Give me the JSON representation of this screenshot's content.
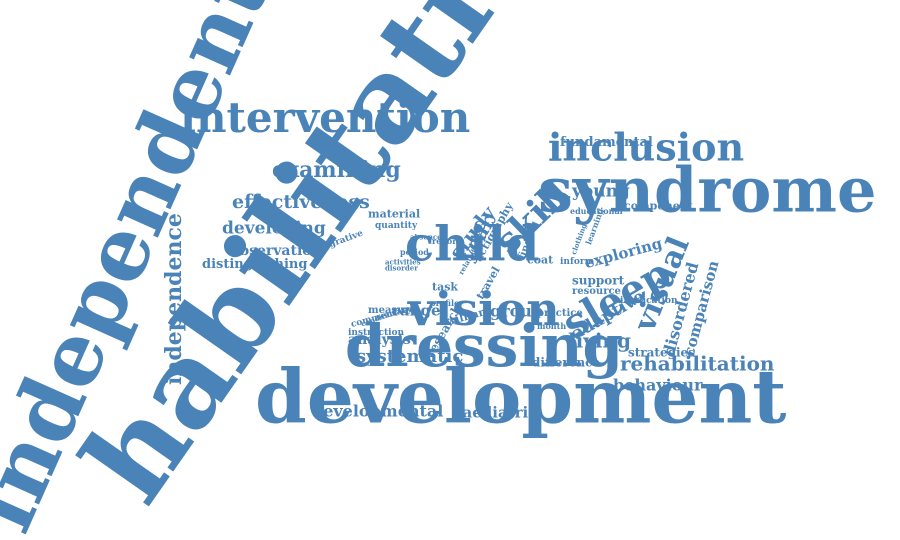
{
  "colors": {
    "word": "#4a83b8",
    "background": "#ffffff"
  },
  "words": [
    {
      "id": "independent",
      "text": "independent"
    },
    {
      "id": "habilitation",
      "text": "habilitation"
    },
    {
      "id": "development",
      "text": "development"
    },
    {
      "id": "dressing",
      "text": "dressing"
    },
    {
      "id": "syndrome",
      "text": "syndrome"
    },
    {
      "id": "child",
      "text": "child"
    },
    {
      "id": "vision",
      "text": "vision"
    },
    {
      "id": "intervention",
      "text": "intervention"
    },
    {
      "id": "inclusion",
      "text": "inclusion"
    },
    {
      "id": "sleep",
      "text": "sleep"
    },
    {
      "id": "visual",
      "text": "visual"
    },
    {
      "id": "skill",
      "text": "skill"
    },
    {
      "id": "independence",
      "text": "independence"
    },
    {
      "id": "examining",
      "text": "examining"
    },
    {
      "id": "effectiveness",
      "text": "effectiveness"
    },
    {
      "id": "developing",
      "text": "developing"
    },
    {
      "id": "observation",
      "text": "observation"
    },
    {
      "id": "distinguishing",
      "text": "distinguishing"
    },
    {
      "id": "rehabilitation",
      "text": "rehabilitation"
    },
    {
      "id": "behaviour",
      "text": "behaviour"
    },
    {
      "id": "living",
      "text": "living"
    },
    {
      "id": "adaptive",
      "text": "adaptive"
    },
    {
      "id": "systematic",
      "text": "systematic"
    },
    {
      "id": "developmental",
      "text": "developmental"
    },
    {
      "id": "paediatric",
      "text": "paediatric"
    },
    {
      "id": "fundamental",
      "text": "fundamental"
    },
    {
      "id": "young",
      "text": "young"
    },
    {
      "id": "disordered",
      "text": "disordered"
    },
    {
      "id": "comparison",
      "text": "comparison"
    },
    {
      "id": "exploring",
      "text": "exploring"
    },
    {
      "id": "study",
      "text": "study"
    },
    {
      "id": "year",
      "text": "year"
    },
    {
      "id": "actigraphy",
      "text": "actigraphy"
    },
    {
      "id": "group",
      "text": "group"
    },
    {
      "id": "range",
      "text": "range"
    },
    {
      "id": "analysis",
      "text": "analysis"
    },
    {
      "id": "difference",
      "text": "difference"
    },
    {
      "id": "strategies",
      "text": "strategies"
    },
    {
      "id": "support",
      "text": "support"
    },
    {
      "id": "component",
      "text": "component"
    },
    {
      "id": "material",
      "text": "material"
    },
    {
      "id": "quantity",
      "text": "quantity"
    },
    {
      "id": "integrative",
      "text": "integrative"
    },
    {
      "id": "measure",
      "text": "measure"
    },
    {
      "id": "william",
      "text": "william"
    },
    {
      "id": "research",
      "text": "research"
    },
    {
      "id": "commentary",
      "text": "commentary"
    },
    {
      "id": "instruction",
      "text": "instruction"
    },
    {
      "id": "task",
      "text": "task"
    },
    {
      "id": "practice",
      "text": "practice"
    },
    {
      "id": "resource",
      "text": "resource"
    },
    {
      "id": "implication",
      "text": "implication"
    },
    {
      "id": "educational",
      "text": "educational"
    },
    {
      "id": "finding",
      "text": "finding"
    },
    {
      "id": "coat",
      "text": "coat"
    },
    {
      "id": "inform",
      "text": "inform"
    },
    {
      "id": "travel",
      "text": "travel"
    },
    {
      "id": "learning",
      "text": "learning"
    },
    {
      "id": "period",
      "text": "period"
    },
    {
      "id": "report",
      "text": "report"
    },
    {
      "id": "profile",
      "text": "profile"
    },
    {
      "id": "month",
      "text": "month"
    },
    {
      "id": "absence",
      "text": "absence"
    },
    {
      "id": "disorder",
      "text": "disorder"
    },
    {
      "id": "activities",
      "text": "activities"
    },
    {
      "id": "condition",
      "text": "condition"
    },
    {
      "id": "related",
      "text": "related"
    },
    {
      "id": "clothing",
      "text": "clothing"
    }
  ]
}
